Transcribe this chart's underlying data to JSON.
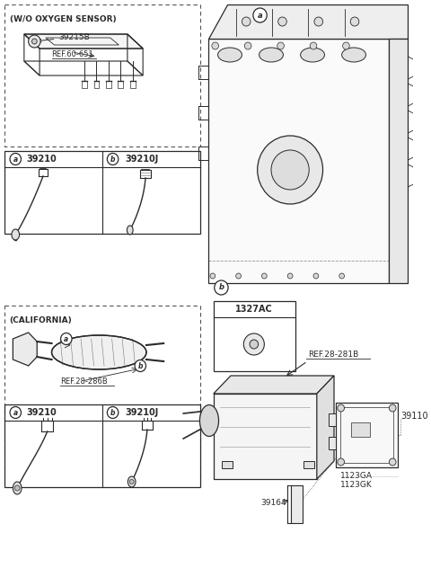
{
  "bg_color": "#ffffff",
  "line_color": "#2a2a2a",
  "dashed_color": "#555555",
  "labels": {
    "wo_oxygen": "(W/O OXYGEN SENSOR)",
    "california": "(CALIFORNIA)",
    "part_39215B": "39215B",
    "ref_60_651": "REF.60-651",
    "part_a_top": "39210",
    "part_b_top": "39210J",
    "part_a_cal": "39210",
    "part_b_cal": "39210J",
    "part_1327AC": "1327AC",
    "ref_28_281B": "REF.28-281B",
    "ref_28_286B": "REF.28-286B",
    "part_39110": "39110",
    "part_39164": "39164",
    "part_1123GA": "1123GA",
    "part_1123GK": "1123GK"
  },
  "font_sizes": {
    "section_label": 6.5,
    "part_number": 6.5,
    "ref_label": 6.0,
    "circle_label": 5.0
  }
}
